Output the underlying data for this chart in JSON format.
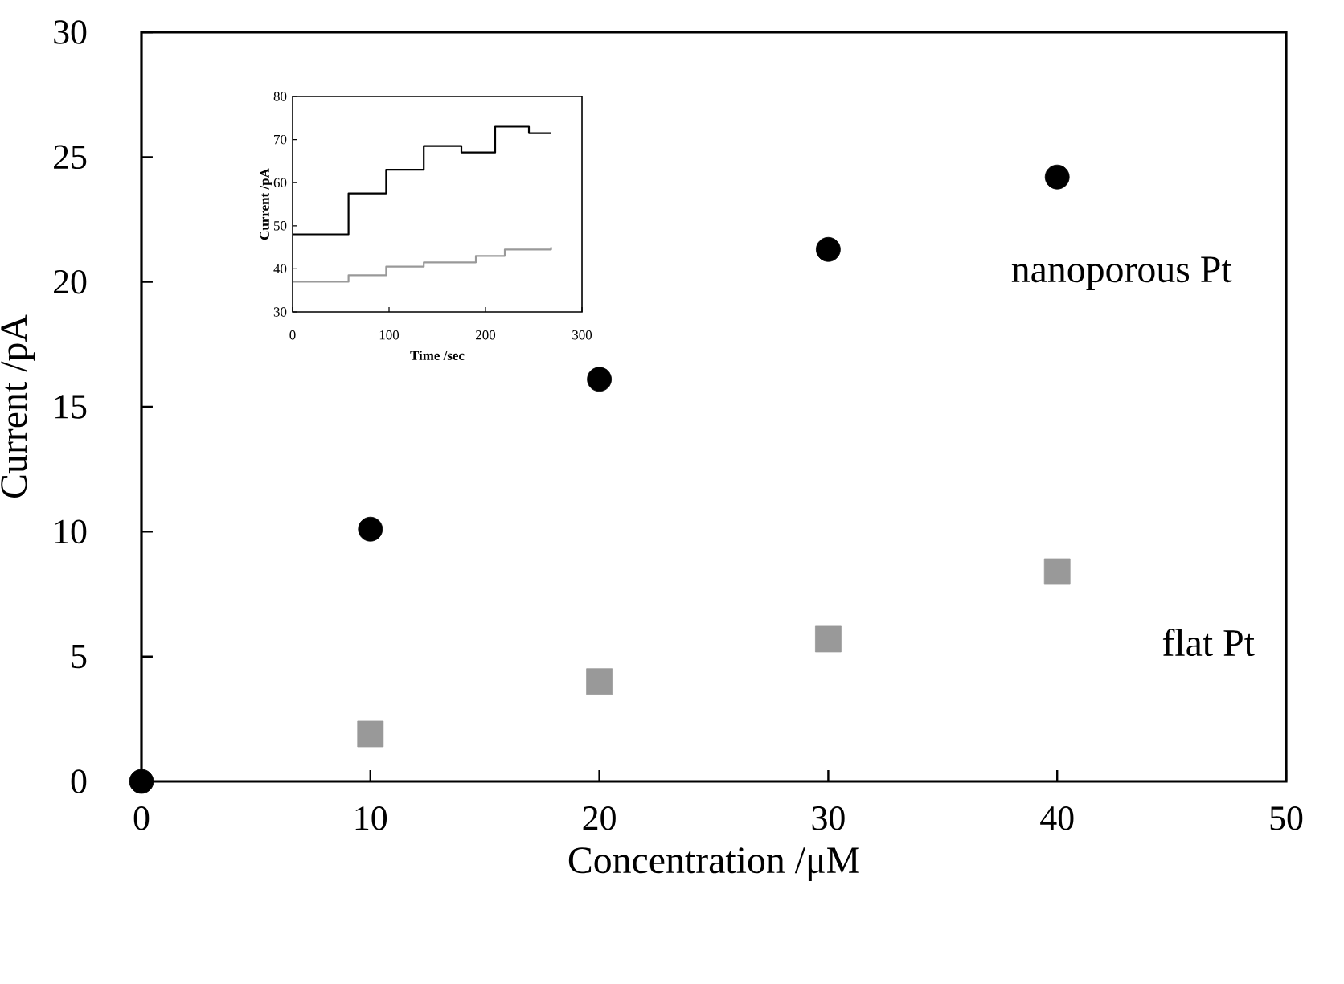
{
  "chart_data": [
    {
      "type": "scatter",
      "xlabel": "Concentration /μM",
      "ylabel": "Current /pA",
      "x": [
        0,
        10,
        20,
        30,
        40
      ],
      "xlim": [
        0,
        50
      ],
      "ylim": [
        0,
        30
      ],
      "xticks": [
        0,
        10,
        20,
        30,
        40,
        50
      ],
      "yticks": [
        0,
        5,
        10,
        15,
        20,
        25,
        30
      ],
      "series": [
        {
          "name": "nanoporous Pt",
          "color": "#000000",
          "marker": "circle",
          "values": [
            0,
            10.1,
            16.1,
            21.3,
            24.2
          ]
        },
        {
          "name": "flat Pt",
          "color": "#999999",
          "marker": "square",
          "values": [
            null,
            1.9,
            4.0,
            5.7,
            8.4
          ]
        }
      ]
    },
    {
      "type": "step",
      "xlabel": "Time /sec",
      "ylabel": "Current /pA",
      "xlim": [
        0,
        300
      ],
      "ylim": [
        30,
        80
      ],
      "xticks": [
        0,
        100,
        200,
        300
      ],
      "yticks": [
        30,
        40,
        50,
        60,
        70,
        80
      ],
      "series": [
        {
          "color": "#000000",
          "x": [
            0,
            58,
            97,
            136,
            175,
            210,
            245,
            268
          ],
          "values": [
            48,
            57.5,
            63,
            68.5,
            67,
            73,
            71.5,
            71.5
          ]
        },
        {
          "color": "#999999",
          "x": [
            0,
            58,
            97,
            136,
            190,
            220,
            268
          ],
          "values": [
            37,
            38.5,
            40.5,
            41.5,
            43,
            44.5,
            45
          ]
        }
      ]
    }
  ]
}
